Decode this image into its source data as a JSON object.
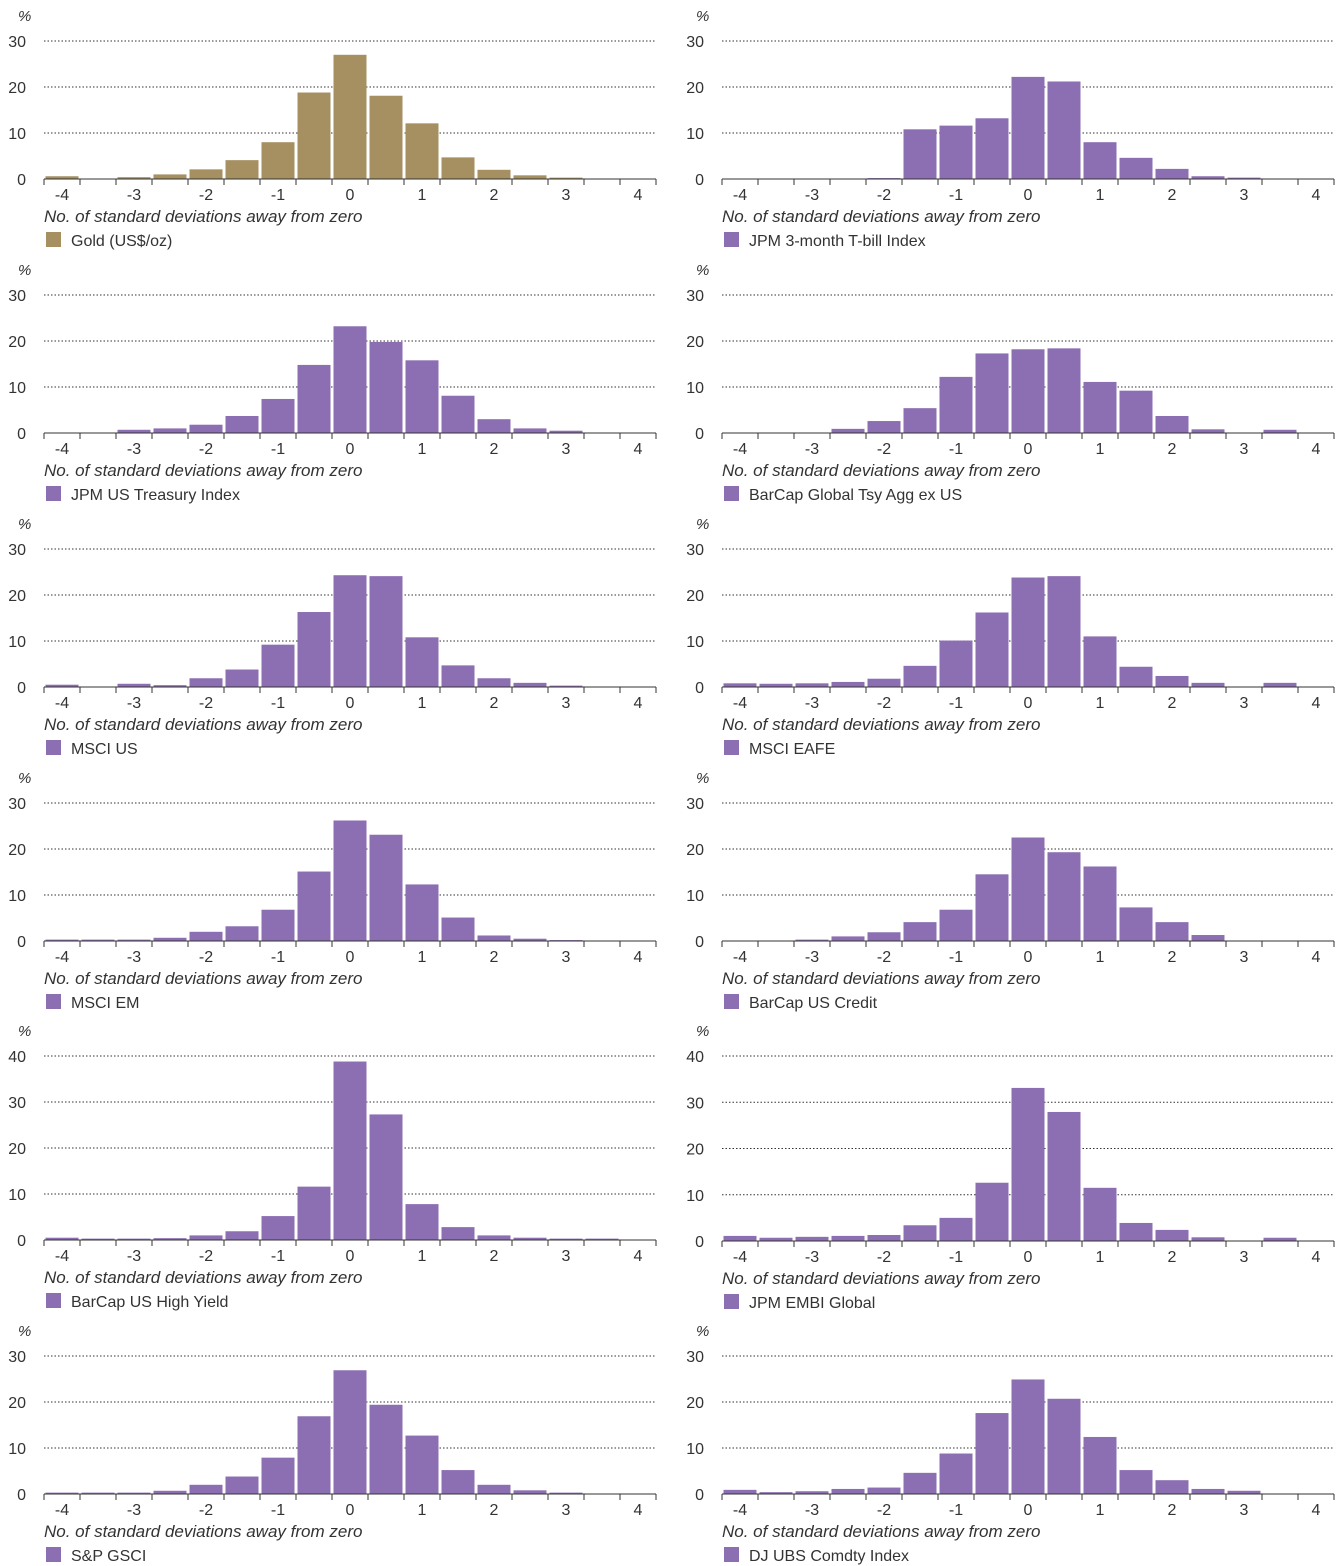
{
  "colors": {
    "gold": "#a69062",
    "purple": "#8c6eb2",
    "axis": "#333333",
    "grid": "#333333"
  },
  "chart_data": [
    {
      "type": "bar",
      "title": "",
      "series_name": "Gold (US$/oz)",
      "color": "gold",
      "unit": "%",
      "xlabel": "No. of standard deviations away from zero",
      "yticks": [
        0,
        10,
        20,
        30
      ],
      "ylim": [
        0,
        30
      ],
      "xticks": [
        -4,
        -3,
        -2,
        -1,
        0,
        1,
        2,
        3,
        4
      ],
      "x": [
        -4,
        -3.5,
        -3,
        -2.5,
        -2,
        -1.5,
        -1,
        -0.5,
        0,
        0.5,
        1,
        1.5,
        2,
        2.5,
        3,
        3.5
      ],
      "values": [
        0.6,
        0,
        0.4,
        1,
        2.1,
        4.1,
        8,
        18.8,
        27,
        18.1,
        12.1,
        4.7,
        2,
        0.8,
        0.3,
        0
      ],
      "grid": true
    },
    {
      "type": "bar",
      "title": "",
      "series_name": "JPM 3-month T-bill Index",
      "color": "purple",
      "unit": "%",
      "xlabel": "No. of standard deviations away from zero",
      "yticks": [
        0,
        10,
        20,
        30
      ],
      "ylim": [
        0,
        30
      ],
      "xticks": [
        -4,
        -3,
        -2,
        -1,
        0,
        1,
        2,
        3,
        4
      ],
      "x": [
        -4,
        -3.5,
        -3,
        -2.5,
        -2,
        -1.5,
        -1,
        -0.5,
        0,
        0.5,
        1,
        1.5,
        2,
        2.5,
        3,
        3.5
      ],
      "values": [
        0,
        0,
        0,
        0,
        0.2,
        10.8,
        11.6,
        13.2,
        22.2,
        21.2,
        8,
        4.6,
        2.2,
        0.6,
        0.3,
        0
      ],
      "grid": true
    },
    {
      "type": "bar",
      "title": "",
      "series_name": "JPM US Treasury Index",
      "color": "purple",
      "unit": "%",
      "xlabel": "No. of standard deviations away from zero",
      "yticks": [
        0,
        10,
        20,
        30
      ],
      "ylim": [
        0,
        30
      ],
      "xticks": [
        -4,
        -3,
        -2,
        -1,
        0,
        1,
        2,
        3,
        4
      ],
      "x": [
        -4,
        -3.5,
        -3,
        -2.5,
        -2,
        -1.5,
        -1,
        -0.5,
        0,
        0.5,
        1,
        1.5,
        2,
        2.5,
        3,
        3.5
      ],
      "values": [
        0,
        0,
        0.7,
        1,
        1.8,
        3.7,
        7.4,
        14.8,
        23.2,
        19.8,
        15.8,
        8.1,
        3,
        1,
        0.5,
        0
      ],
      "grid": true
    },
    {
      "type": "bar",
      "title": "",
      "series_name": "BarCap Global Tsy Agg ex US",
      "color": "purple",
      "unit": "%",
      "xlabel": "No. of standard deviations away from zero",
      "yticks": [
        0,
        10,
        20,
        30
      ],
      "ylim": [
        0,
        30
      ],
      "xticks": [
        -4,
        -3,
        -2,
        -1,
        0,
        1,
        2,
        3,
        4
      ],
      "x": [
        -4,
        -3.5,
        -3,
        -2.5,
        -2,
        -1.5,
        -1,
        -0.5,
        0,
        0.5,
        1,
        1.5,
        2,
        2.5,
        3,
        3.5
      ],
      "values": [
        0,
        0,
        0,
        0.9,
        2.6,
        5.4,
        12.2,
        17.3,
        18.2,
        18.4,
        11.1,
        9.2,
        3.7,
        0.8,
        0,
        0.7
      ],
      "grid": true
    },
    {
      "type": "bar",
      "title": "",
      "series_name": "MSCI US",
      "color": "purple",
      "unit": "%",
      "xlabel": "No. of standard deviations away from zero",
      "yticks": [
        0,
        10,
        20,
        30
      ],
      "ylim": [
        0,
        30
      ],
      "xticks": [
        -4,
        -3,
        -2,
        -1,
        0,
        1,
        2,
        3,
        4
      ],
      "x": [
        -4,
        -3.5,
        -3,
        -2.5,
        -2,
        -1.5,
        -1,
        -0.5,
        0,
        0.5,
        1,
        1.5,
        2,
        2.5,
        3,
        3.5
      ],
      "values": [
        0.5,
        0,
        0.7,
        0.4,
        1.9,
        3.8,
        9.2,
        16.3,
        24.3,
        24.1,
        10.8,
        4.7,
        1.9,
        0.9,
        0.3,
        0
      ],
      "grid": true
    },
    {
      "type": "bar",
      "title": "",
      "series_name": "MSCI EAFE",
      "color": "purple",
      "unit": "%",
      "xlabel": "No. of standard deviations away from zero",
      "yticks": [
        0,
        10,
        20,
        30
      ],
      "ylim": [
        0,
        30
      ],
      "xticks": [
        -4,
        -3,
        -2,
        -1,
        0,
        1,
        2,
        3,
        4
      ],
      "x": [
        -4,
        -3.5,
        -3,
        -2.5,
        -2,
        -1.5,
        -1,
        -0.5,
        0,
        0.5,
        1,
        1.5,
        2,
        2.5,
        3,
        3.5
      ],
      "values": [
        0.8,
        0.7,
        0.8,
        1.1,
        1.8,
        4.6,
        10.1,
        16.2,
        23.8,
        24.1,
        11,
        4.4,
        2.4,
        0.9,
        0,
        0.9
      ],
      "grid": true
    },
    {
      "type": "bar",
      "title": "",
      "series_name": "MSCI EM",
      "color": "purple",
      "unit": "%",
      "xlabel": "No. of standard deviations away from zero",
      "yticks": [
        0,
        10,
        20,
        30
      ],
      "ylim": [
        0,
        30
      ],
      "xticks": [
        -4,
        -3,
        -2,
        -1,
        0,
        1,
        2,
        3,
        4
      ],
      "x": [
        -4,
        -3.5,
        -3,
        -2.5,
        -2,
        -1.5,
        -1,
        -0.5,
        0,
        0.5,
        1,
        1.5,
        2,
        2.5,
        3,
        3.5
      ],
      "values": [
        0.3,
        0.3,
        0.3,
        0.7,
        2,
        3.2,
        6.8,
        15.1,
        26.2,
        23.1,
        12.3,
        5.1,
        1.2,
        0.5,
        0.2,
        0
      ],
      "grid": true
    },
    {
      "type": "bar",
      "title": "",
      "series_name": "BarCap US Credit",
      "color": "purple",
      "unit": "%",
      "xlabel": "No. of standard deviations away from zero",
      "yticks": [
        0,
        10,
        20,
        30
      ],
      "ylim": [
        0,
        30
      ],
      "xticks": [
        -4,
        -3,
        -2,
        -1,
        0,
        1,
        2,
        3,
        4
      ],
      "x": [
        -4,
        -3.5,
        -3,
        -2.5,
        -2,
        -1.5,
        -1,
        -0.5,
        0,
        0.5,
        1,
        1.5,
        2,
        2.5,
        3,
        3.5
      ],
      "values": [
        0,
        0,
        0.3,
        1,
        1.9,
        4.1,
        6.8,
        14.5,
        22.5,
        19.3,
        16.2,
        7.3,
        4.1,
        1.3,
        0,
        0
      ],
      "grid": true
    },
    {
      "type": "bar",
      "title": "",
      "series_name": "BarCap US High Yield",
      "color": "purple",
      "unit": "%",
      "xlabel": "No. of standard deviations away from zero",
      "yticks": [
        0,
        10,
        20,
        30,
        40
      ],
      "ylim": [
        0,
        40
      ],
      "xticks": [
        -4,
        -3,
        -2,
        -1,
        0,
        1,
        2,
        3,
        4
      ],
      "x": [
        -4,
        -3.5,
        -3,
        -2.5,
        -2,
        -1.5,
        -1,
        -0.5,
        0,
        0.5,
        1,
        1.5,
        2,
        2.5,
        3,
        3.5
      ],
      "values": [
        0.5,
        0.3,
        0.3,
        0.4,
        1,
        1.9,
        5.2,
        11.6,
        38.8,
        27.3,
        7.8,
        2.8,
        1,
        0.5,
        0.3,
        0.3
      ],
      "grid": true
    },
    {
      "type": "bar",
      "title": "",
      "series_name": "JPM EMBI Global",
      "color": "purple",
      "unit": "%",
      "xlabel": "No. of standard deviations away from zero",
      "yticks": [
        0,
        10,
        20,
        30,
        40
      ],
      "ylim": [
        0,
        40
      ],
      "xticks": [
        -4,
        -3,
        -2,
        -1,
        0,
        1,
        2,
        3,
        4
      ],
      "x": [
        -4,
        -3.5,
        -3,
        -2.5,
        -2,
        -1.5,
        -1,
        -0.5,
        0,
        0.5,
        1,
        1.5,
        2,
        2.5,
        3,
        3.5
      ],
      "values": [
        1.1,
        0.7,
        0.9,
        1.1,
        1.3,
        3.4,
        5,
        12.6,
        33.1,
        27.9,
        11.5,
        3.9,
        2.4,
        0.8,
        0,
        0.7
      ],
      "grid": true
    },
    {
      "type": "bar",
      "title": "",
      "series_name": "S&P GSCI",
      "color": "purple",
      "unit": "%",
      "xlabel": "No. of standard deviations away from zero",
      "yticks": [
        0,
        10,
        20,
        30
      ],
      "ylim": [
        0,
        30
      ],
      "xticks": [
        -4,
        -3,
        -2,
        -1,
        0,
        1,
        2,
        3,
        4
      ],
      "x": [
        -4,
        -3.5,
        -3,
        -2.5,
        -2,
        -1.5,
        -1,
        -0.5,
        0,
        0.5,
        1,
        1.5,
        2,
        2.5,
        3,
        3.5
      ],
      "values": [
        0.3,
        0.3,
        0.3,
        0.7,
        2,
        3.8,
        7.9,
        16.9,
        26.9,
        19.4,
        12.7,
        5.2,
        2,
        0.8,
        0.3,
        0
      ],
      "grid": true
    },
    {
      "type": "bar",
      "title": "",
      "series_name": "DJ UBS Comdty Index",
      "color": "purple",
      "unit": "%",
      "xlabel": "No. of standard deviations away from zero",
      "yticks": [
        0,
        10,
        20,
        30
      ],
      "ylim": [
        0,
        30
      ],
      "xticks": [
        -4,
        -3,
        -2,
        -1,
        0,
        1,
        2,
        3,
        4
      ],
      "x": [
        -4,
        -3.5,
        -3,
        -2.5,
        -2,
        -1.5,
        -1,
        -0.5,
        0,
        0.5,
        1,
        1.5,
        2,
        2.5,
        3,
        3.5
      ],
      "values": [
        0.9,
        0.4,
        0.6,
        1.1,
        1.4,
        4.6,
        8.8,
        17.6,
        24.9,
        20.7,
        12.4,
        5.2,
        3,
        1.1,
        0.7,
        0
      ],
      "grid": true
    }
  ]
}
